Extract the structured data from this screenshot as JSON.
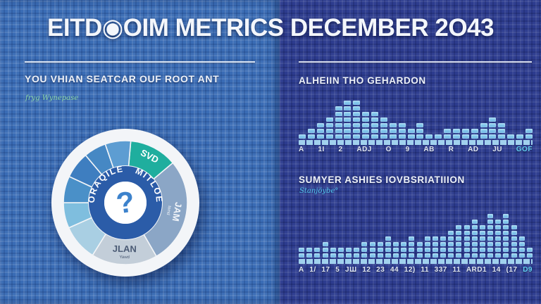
{
  "title": "EITD◉OIM METRICS DECEMBER 2O43",
  "left_panel": {
    "heading": "YOU VHIAN SEATCAR OUF ROOT ANT",
    "subheading": "fryg Wynepase"
  },
  "right_panel": {
    "accent_color": "#62d0f0"
  },
  "chart_data": [
    {
      "type": "pie",
      "id": "resource-donut",
      "ring_text_left": "ORAQILE",
      "ring_text_right": "MITLOE",
      "center_symbol": "?",
      "inner_ring_color": "#2b5ca8",
      "center_color": "#ffffff",
      "question_color": "#3c82cc",
      "plate_color": "#f3f5f8",
      "slices": [
        {
          "label": "SVD",
          "start": 5,
          "end": 50,
          "pct": 12.5,
          "color": "#1fae9e",
          "label_color": "#ffffff"
        },
        {
          "label": "JAM",
          "sub": "tomd",
          "start": 50,
          "end": 150,
          "pct": 27.8,
          "color": "#8ba6c6",
          "label_color": "#f2f5f9"
        },
        {
          "label": "JLAN",
          "sub": "Yawd",
          "start": 150,
          "end": 212,
          "pct": 17.2,
          "color": "#c3ced9",
          "label_color": "#4a5a74"
        },
        {
          "start": 212,
          "end": 246,
          "pct": 9.4,
          "color": "#a9cfe3"
        },
        {
          "start": 246,
          "end": 270,
          "pct": 6.7,
          "color": "#7fbede"
        },
        {
          "start": 270,
          "end": 295,
          "pct": 6.9,
          "color": "#4a90c8"
        },
        {
          "start": 295,
          "end": 320,
          "pct": 6.9,
          "color": "#3e7ec0"
        },
        {
          "start": 320,
          "end": 341,
          "pct": 5.8,
          "color": "#4688c4"
        },
        {
          "start": 341,
          "end": 365,
          "pct": 6.7,
          "color": "#5d9dd2"
        }
      ]
    },
    {
      "type": "bar",
      "title": "ALHEIIN THO GEHARDON",
      "values": [
        1,
        2,
        3,
        4,
        6,
        7,
        7,
        5,
        5,
        4,
        3,
        3,
        2,
        3,
        1,
        1,
        2,
        2,
        2,
        2,
        3,
        4,
        3,
        1,
        1,
        2
      ],
      "categories": [
        "A",
        "1I",
        "2",
        "ADJ",
        "O",
        "9",
        "AB",
        "R",
        "AD",
        "JU",
        "GOF"
      ],
      "accent_last_label": true,
      "ylim": [
        0,
        8
      ],
      "bar_color": "#7cc4ec"
    },
    {
      "type": "bar",
      "title": "SUMYER ASHIES IOVBSRIATIIION",
      "subtitle": "Stanjöybe°",
      "values": [
        2,
        2,
        2,
        3,
        2,
        2,
        2,
        2,
        3,
        3,
        3,
        4,
        3,
        3,
        4,
        3,
        4,
        4,
        4,
        5,
        6,
        6,
        7,
        6,
        8,
        7,
        8,
        6,
        4,
        2
      ],
      "categories": [
        "A",
        "1/",
        "17",
        "5",
        "JШ",
        "12",
        "23",
        "44",
        "12)",
        "11",
        "337",
        "11",
        "ARD1",
        "14",
        "(17",
        "D9"
      ],
      "accent_last_label": true,
      "ylim": [
        0,
        8
      ],
      "bar_color": "#7cc4ec"
    }
  ]
}
